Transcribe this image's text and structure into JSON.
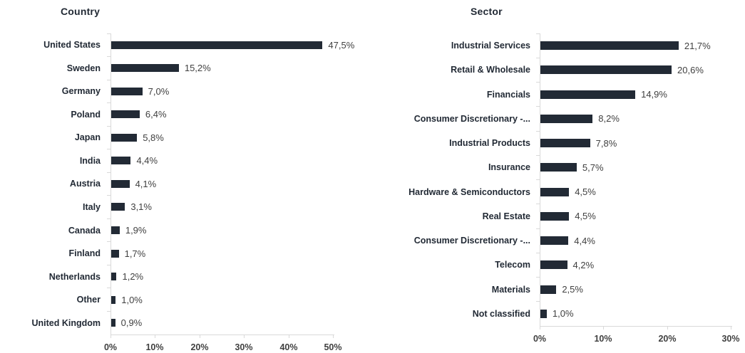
{
  "colors": {
    "bar": "#222a35",
    "category_label": "#222a35",
    "value_label": "#404040",
    "axis_line": "#d9d9d9",
    "tick_label": "#404040",
    "title": "#222a35"
  },
  "chart_data": [
    {
      "type": "bar",
      "orientation": "horizontal",
      "title": "Country",
      "categories": [
        "United States",
        "Sweden",
        "Germany",
        "Poland",
        "Japan",
        "India",
        "Austria",
        "Italy",
        "Canada",
        "Finland",
        "Netherlands",
        "Other",
        "United Kingdom"
      ],
      "values": [
        47.5,
        15.2,
        7.0,
        6.4,
        5.8,
        4.4,
        4.1,
        3.1,
        1.9,
        1.7,
        1.2,
        1.0,
        0.9
      ],
      "value_labels": [
        "47,5%",
        "15,2%",
        "7,0%",
        "6,4%",
        "5,8%",
        "4,4%",
        "4,1%",
        "3,1%",
        "1,9%",
        "1,7%",
        "1,2%",
        "1,0%",
        "0,9%"
      ],
      "xlim": [
        0,
        50
      ],
      "x_tick_labels": [
        "0%",
        "10%",
        "20%",
        "30%",
        "40%",
        "50%"
      ],
      "grid": false,
      "legend": false
    },
    {
      "type": "bar",
      "orientation": "horizontal",
      "title": "Sector",
      "categories": [
        "Industrial Services",
        "Retail & Wholesale",
        "Financials",
        "Consumer Discretionary -...",
        "Industrial Products",
        "Insurance",
        "Hardware & Semiconductors",
        "Real Estate",
        "Consumer Discretionary -...",
        "Telecom",
        "Materials",
        "Not classified"
      ],
      "values": [
        21.7,
        20.6,
        14.9,
        8.2,
        7.8,
        5.7,
        4.5,
        4.5,
        4.4,
        4.2,
        2.5,
        1.0
      ],
      "value_labels": [
        "21,7%",
        "20,6%",
        "14,9%",
        "8,2%",
        "7,8%",
        "5,7%",
        "4,5%",
        "4,5%",
        "4,4%",
        "4,2%",
        "2,5%",
        "1,0%"
      ],
      "xlim": [
        0,
        30
      ],
      "x_tick_labels": [
        "0%",
        "10%",
        "20%",
        "30%"
      ],
      "grid": false,
      "legend": false
    }
  ]
}
